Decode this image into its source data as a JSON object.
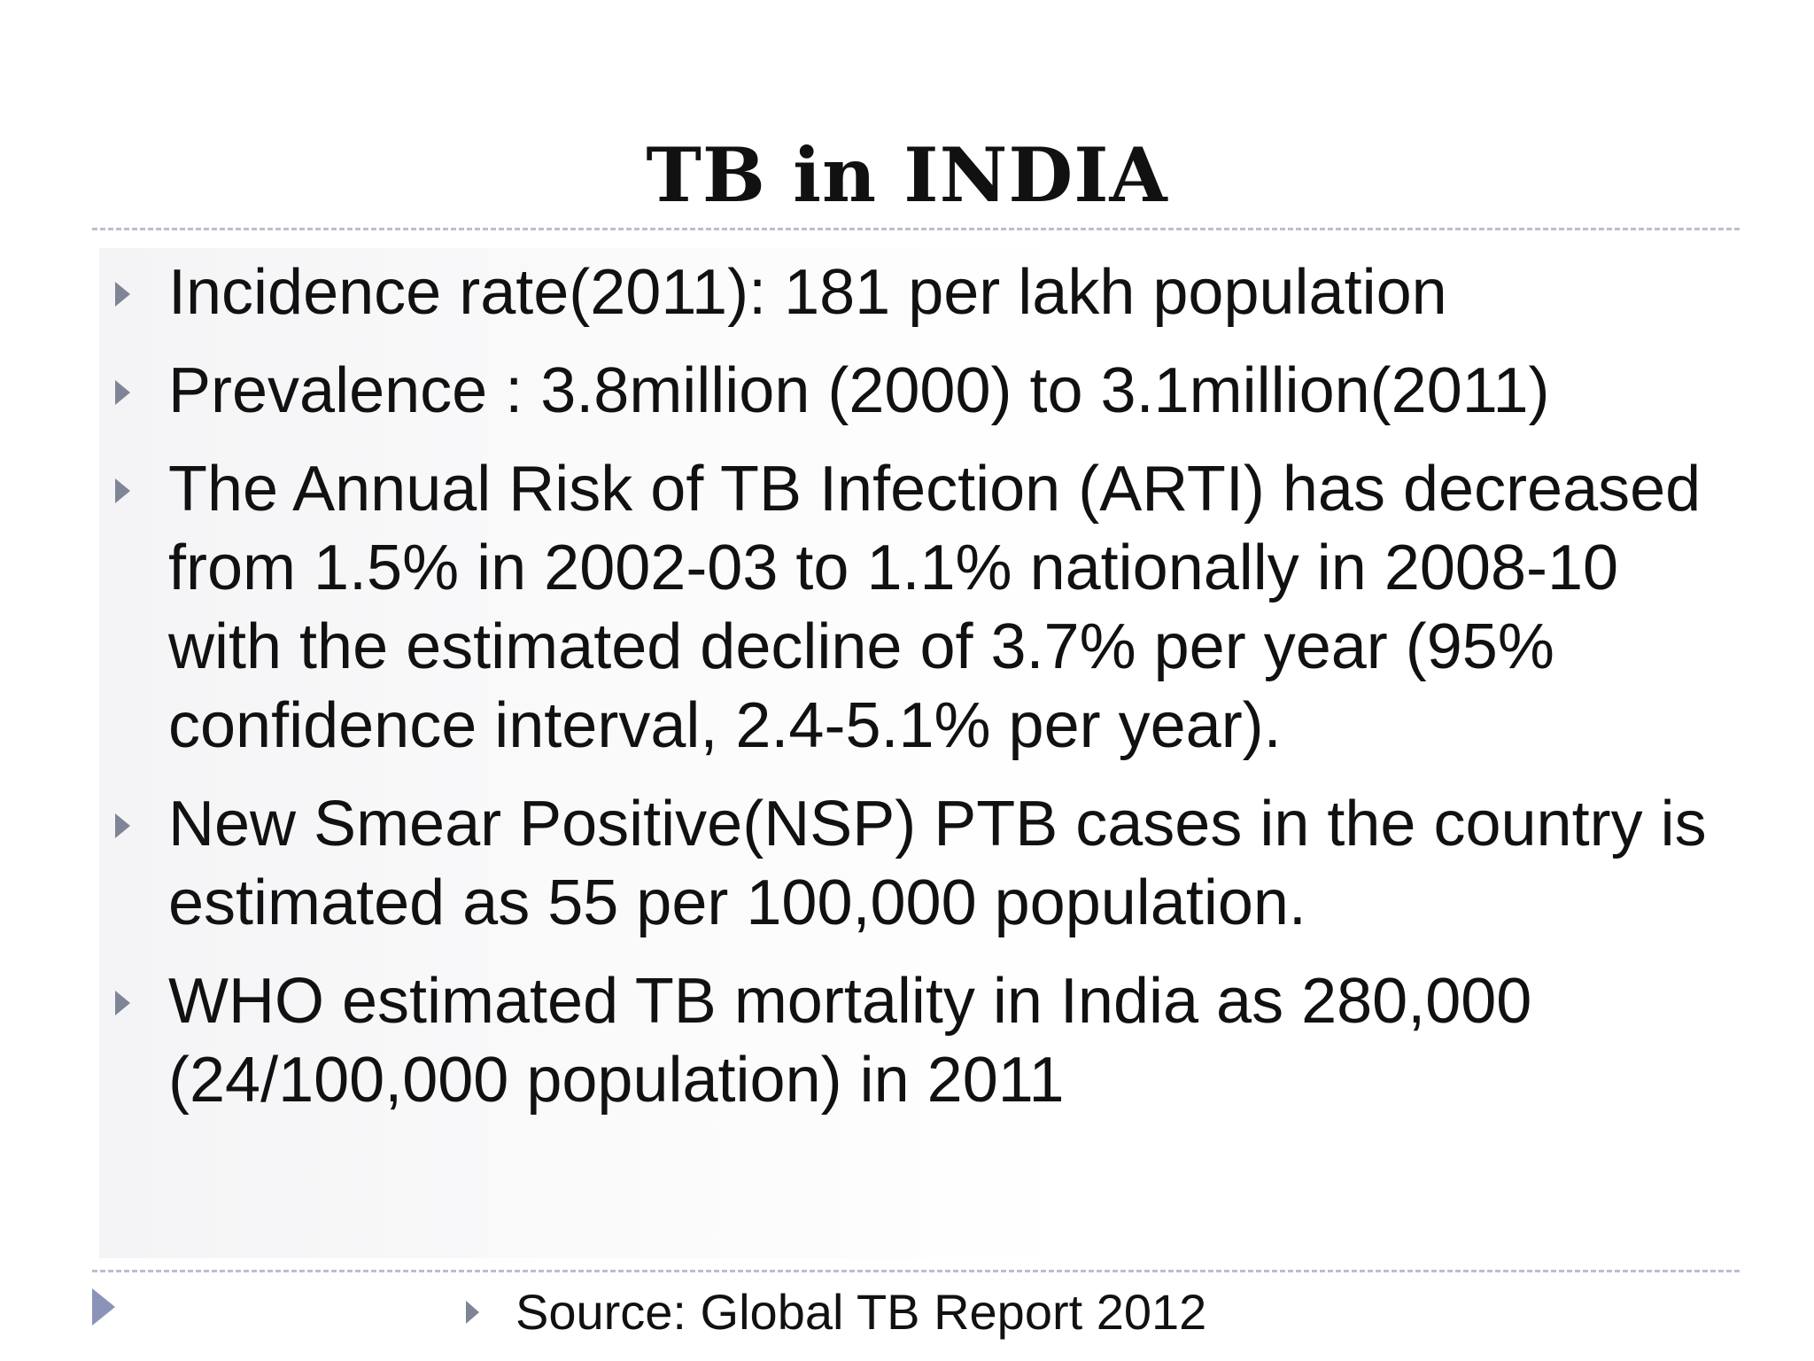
{
  "slide": {
    "title": "TB in INDIA",
    "bullets": [
      {
        "text": "Incidence rate(2011): 181 per lakh population"
      },
      {
        "text": "Prevalence : 3.8million (2000) to 3.1million(2011)"
      },
      {
        "text": "The Annual Risk of TB Infection (ARTI) has decreased from 1.5% in 2002-03 to 1.1% nationally in 2008-10 with the estimated decline of 3.7% per year (95% confidence interval, 2.4-5.1% per year)."
      },
      {
        "text": "New Smear Positive(NSP) PTB  cases in the country is estimated as 55 per 100,000 population."
      },
      {
        "text": "WHO estimated TB mortality in India as 280,000 (24/100,000 population) in 2011"
      }
    ],
    "source": "Source: Global TB Report 2012"
  },
  "icons": {
    "bullet": "triangle-right-icon",
    "corner": "triangle-right-icon"
  },
  "colors": {
    "bullet_arrow": "#7e8597",
    "corner_arrow": "#8b94b8",
    "divider": "#b9c0cc",
    "text": "#111111"
  }
}
